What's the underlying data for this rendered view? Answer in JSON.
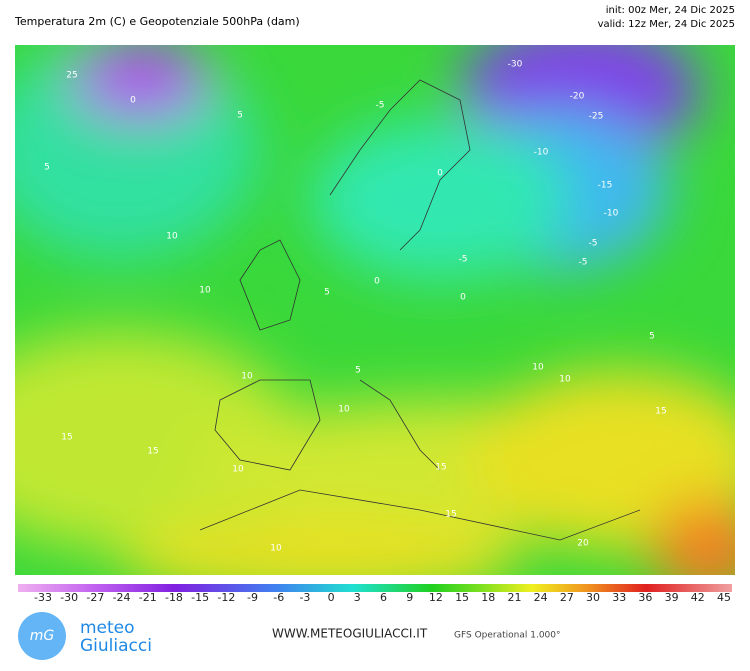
{
  "header": {
    "title": "Temperatura 2m (C) e Geopotenziale 500hPa (dam)",
    "init": "init: 00z Mer, 24 Dic 2025",
    "valid": "valid: 12z Mer, 24 Dic 2025"
  },
  "map": {
    "contour_labels": [
      "25",
      "0",
      "-5",
      "5",
      "5",
      "10",
      "10",
      "10",
      "15",
      "15",
      "10",
      "10",
      "5",
      "0",
      "-5",
      "0",
      "5",
      "0",
      "-5",
      "-30",
      "-20",
      "-25",
      "-10",
      "-15",
      "-10",
      "-5",
      "5",
      "10",
      "10",
      "15",
      "15",
      "15",
      "20",
      "10"
    ]
  },
  "colorbar": {
    "ticks": [
      -33,
      -30,
      -27,
      -24,
      -21,
      -18,
      -15,
      -12,
      -9,
      -6,
      -3,
      0,
      3,
      6,
      9,
      12,
      15,
      18,
      21,
      24,
      27,
      30,
      33,
      36,
      39,
      42,
      45
    ]
  },
  "footer": {
    "logo_line1": "meteo",
    "logo_line2": "Giuliacci",
    "website": "WWW.METEOGIULIACCI.IT",
    "model": "GFS Operational 1.000°"
  }
}
